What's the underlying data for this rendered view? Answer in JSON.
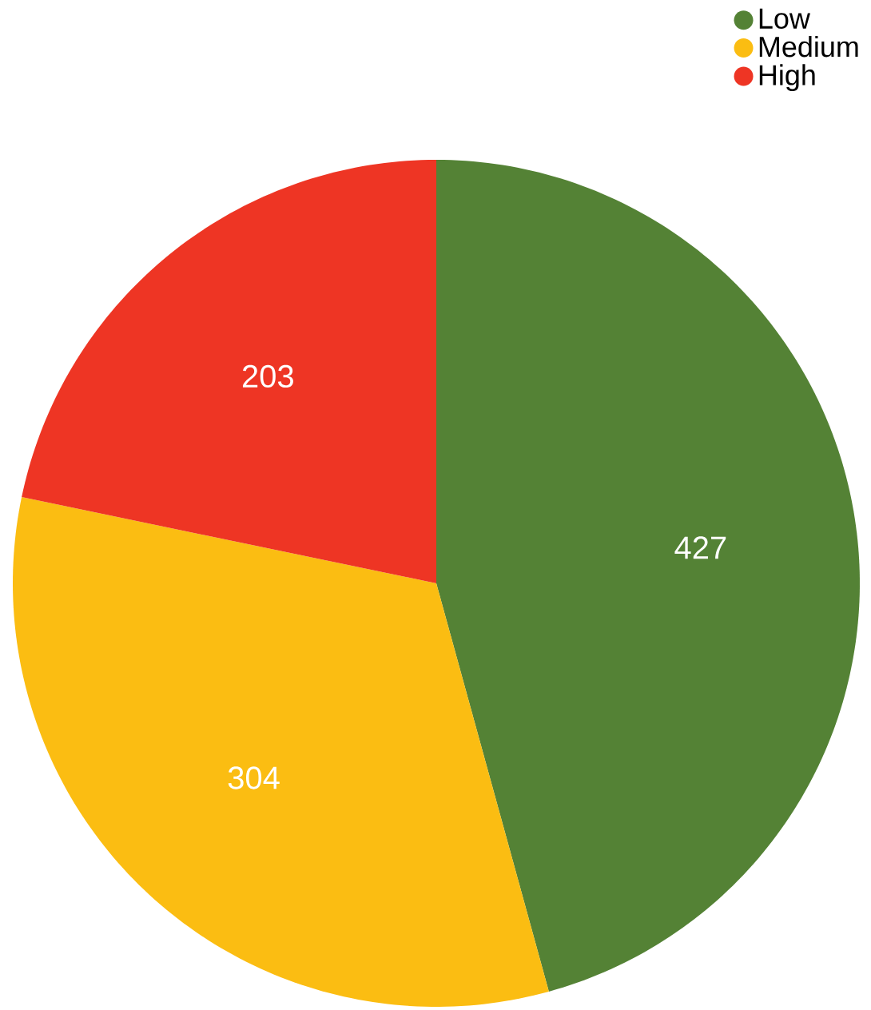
{
  "chart_data": {
    "type": "pie",
    "categories": [
      "Low",
      "Medium",
      "High"
    ],
    "values": [
      427,
      304,
      203
    ],
    "colors": [
      "#548235",
      "#fbbd12",
      "#ee3524"
    ],
    "data_labels": true,
    "legend": "top right"
  }
}
